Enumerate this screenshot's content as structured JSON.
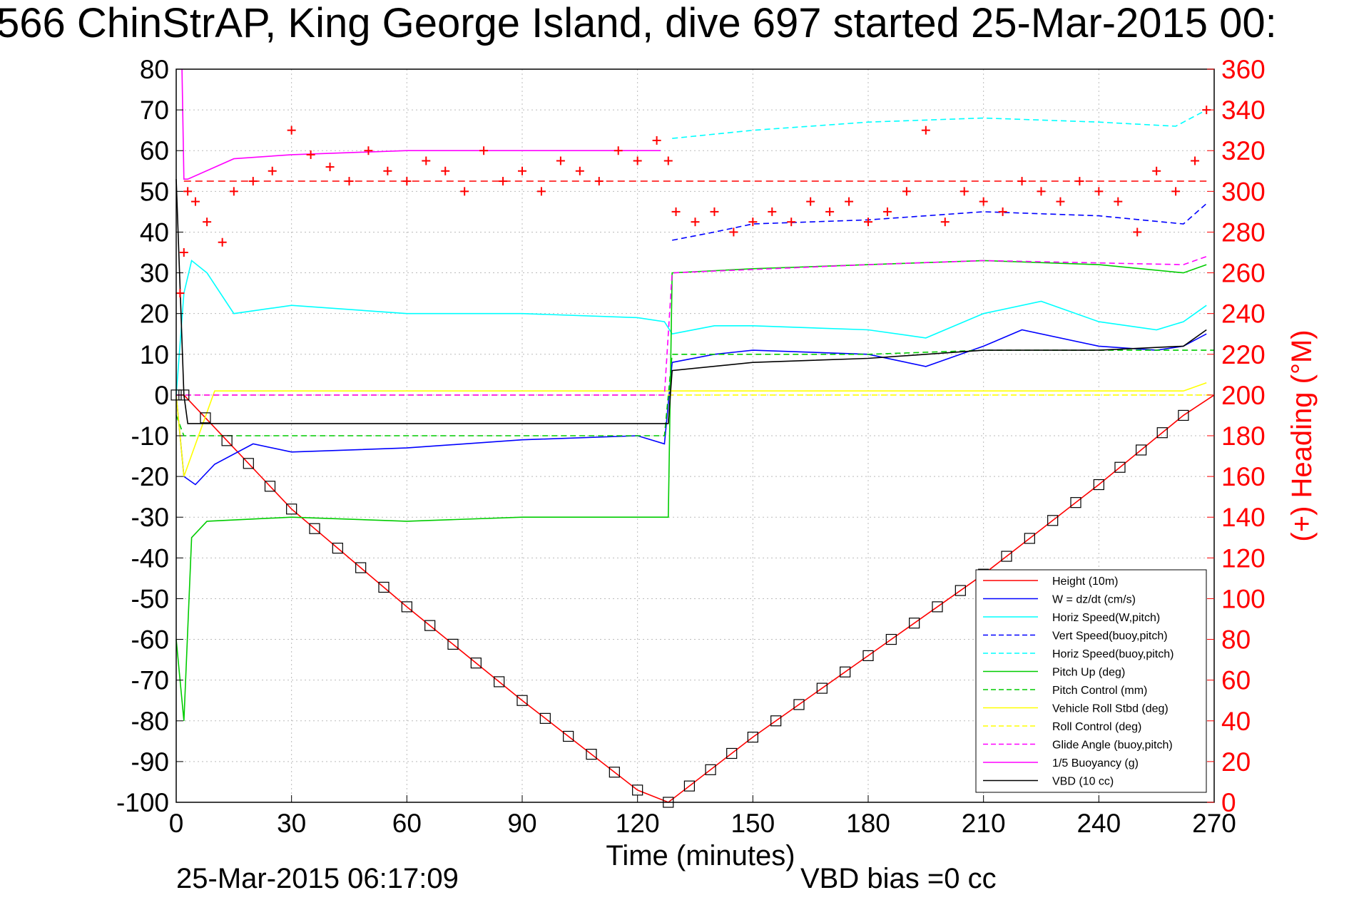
{
  "chart_data": {
    "type": "line",
    "title": "566 ChinStrAP, King George Island, dive 697 started 25-Mar-2015 00:",
    "xlabel": "Time (minutes)",
    "ylabel_right": "(+) Heading (°M)",
    "xlim": [
      0,
      270
    ],
    "ylim": [
      -100,
      80
    ],
    "ylim_right": [
      0,
      360
    ],
    "x_ticks": [
      "0",
      "30",
      "60",
      "90",
      "120",
      "150",
      "180",
      "210",
      "240",
      "270"
    ],
    "y_ticks": [
      "80",
      "70",
      "60",
      "50",
      "40",
      "30",
      "20",
      "10",
      "0",
      "-10",
      "-20",
      "-30",
      "-40",
      "-50",
      "-60",
      "-70",
      "-80",
      "-90",
      "-100"
    ],
    "y_right_ticks": [
      "360",
      "340",
      "320",
      "300",
      "280",
      "260",
      "240",
      "220",
      "200",
      "180",
      "160",
      "140",
      "120",
      "100",
      "80",
      "60",
      "40",
      "20",
      "0"
    ],
    "grid": true,
    "legend_position": "bottom-right",
    "footer_left": "25-Mar-2015 06:17:09",
    "footer_right": "VBD bias =0 cc",
    "series": [
      {
        "name": "Height (10m)",
        "color": "#ff0000",
        "style": "solid",
        "x": [
          0,
          2,
          30,
          60,
          90,
          120,
          128,
          150,
          180,
          210,
          240,
          262,
          270
        ],
        "y": [
          0,
          0,
          -28,
          -52,
          -75,
          -97,
          -100,
          -84,
          -64,
          -44,
          -22,
          -5,
          0
        ]
      },
      {
        "name": "W = dz/dt (cm/s)",
        "color": "#0000ff",
        "style": "solid",
        "x": [
          0,
          2,
          5,
          10,
          20,
          30,
          60,
          90,
          120,
          127,
          129,
          140,
          150,
          180,
          195,
          210,
          220,
          240,
          255,
          262,
          268
        ],
        "y": [
          0,
          -20,
          -22,
          -17,
          -12,
          -14,
          -13,
          -11,
          -10,
          -12,
          8,
          10,
          11,
          10,
          7,
          12,
          16,
          12,
          11,
          12,
          15
        ]
      },
      {
        "name": "Horiz Speed(W,pitch)",
        "color": "#00ffff",
        "style": "solid",
        "x": [
          0,
          2,
          4,
          8,
          15,
          30,
          60,
          90,
          120,
          127,
          129,
          140,
          150,
          180,
          195,
          210,
          225,
          240,
          255,
          262,
          268
        ],
        "y": [
          0,
          25,
          33,
          30,
          20,
          22,
          20,
          20,
          19,
          18,
          15,
          17,
          17,
          16,
          14,
          20,
          23,
          18,
          16,
          18,
          22
        ]
      },
      {
        "name": "Vert Speed(buoy,pitch)",
        "color": "#0000ff",
        "style": "dashed",
        "x": [
          129,
          140,
          150,
          180,
          210,
          240,
          262,
          268
        ],
        "y": [
          38,
          40,
          42,
          43,
          45,
          44,
          42,
          47
        ]
      },
      {
        "name": "Horiz Speed(buoy,pitch)",
        "color": "#00ffff",
        "style": "dashed",
        "x": [
          129,
          150,
          180,
          210,
          240,
          260,
          268
        ],
        "y": [
          63,
          65,
          67,
          68,
          67,
          66,
          70
        ]
      },
      {
        "name": "Pitch Up (deg)",
        "color": "#00cc00",
        "style": "solid",
        "x": [
          0,
          2,
          4,
          8,
          30,
          60,
          90,
          127,
          128,
          129,
          150,
          180,
          210,
          240,
          262,
          268
        ],
        "y": [
          -60,
          -80,
          -35,
          -31,
          -30,
          -31,
          -30,
          -30,
          -30,
          30,
          31,
          32,
          33,
          32,
          30,
          32
        ]
      },
      {
        "name": "Pitch Control (mm)",
        "color": "#00cc00",
        "style": "dashed",
        "x": [
          0,
          2,
          10,
          60,
          127,
          129,
          180,
          210,
          270
        ],
        "y": [
          -5,
          -10,
          -10,
          -10,
          -10,
          10,
          10,
          11,
          11
        ]
      },
      {
        "name": "Vehicle Roll Stbd (deg)",
        "color": "#ffff00",
        "style": "solid",
        "x": [
          0,
          2,
          10,
          60,
          127,
          129,
          180,
          210,
          262,
          268
        ],
        "y": [
          0,
          -20,
          1,
          1,
          1,
          1,
          1,
          1,
          1,
          3
        ]
      },
      {
        "name": "Roll Control (deg)",
        "color": "#ffff00",
        "style": "dashed",
        "x": [
          0,
          270
        ],
        "y": [
          0,
          0
        ]
      },
      {
        "name": "Glide Angle (buoy,pitch)",
        "color": "#ff00ff",
        "style": "dashed",
        "x": [
          0,
          127,
          129,
          180,
          210,
          262,
          268
        ],
        "y": [
          0,
          0,
          30,
          32,
          33,
          32,
          34
        ]
      },
      {
        "name": "1/5 Buoyancy (g)",
        "color": "#ff00ff",
        "style": "solid",
        "x": [
          1.5,
          2,
          3,
          15,
          30,
          60,
          90,
          126
        ],
        "y": [
          80,
          53,
          53,
          58,
          59,
          60,
          60,
          60
        ]
      },
      {
        "name": "VBD (10 cc)",
        "color": "#000000",
        "style": "solid",
        "x": [
          0,
          2,
          3,
          60,
          127,
          128,
          129,
          150,
          180,
          210,
          240,
          262,
          268
        ],
        "y": [
          53,
          0,
          -7,
          -7,
          -7,
          -7,
          6,
          8,
          9,
          11,
          11,
          12,
          16
        ]
      }
    ],
    "heading_series": {
      "name": "(+) Heading (°M)",
      "color": "#ff0000",
      "marker": "+",
      "axis": "right",
      "x": [
        1,
        2,
        3,
        5,
        8,
        12,
        15,
        20,
        25,
        30,
        35,
        40,
        45,
        50,
        55,
        60,
        65,
        70,
        75,
        80,
        85,
        90,
        95,
        100,
        105,
        110,
        115,
        120,
        125,
        128,
        130,
        135,
        140,
        145,
        150,
        155,
        160,
        165,
        170,
        175,
        180,
        185,
        190,
        195,
        200,
        205,
        210,
        215,
        220,
        225,
        230,
        235,
        240,
        245,
        250,
        255,
        260,
        265,
        268
      ],
      "y": [
        250,
        270,
        300,
        295,
        285,
        275,
        300,
        305,
        310,
        330,
        318,
        312,
        305,
        320,
        310,
        305,
        315,
        310,
        300,
        320,
        305,
        310,
        300,
        315,
        310,
        305,
        320,
        315,
        325,
        315,
        290,
        285,
        290,
        280,
        285,
        290,
        285,
        295,
        290,
        295,
        285,
        290,
        300,
        330,
        285,
        300,
        295,
        290,
        305,
        300,
        295,
        305,
        300,
        295,
        280,
        310,
        300,
        315,
        340
      ]
    },
    "heading_ref": 305
  },
  "legend": {
    "items": [
      {
        "label": "Height (10m)",
        "color": "#ff0000",
        "dash": false
      },
      {
        "label": "W = dz/dt (cm/s)",
        "color": "#0000ff",
        "dash": false
      },
      {
        "label": "Horiz Speed(W,pitch)",
        "color": "#00ffff",
        "dash": false
      },
      {
        "label": "Vert Speed(buoy,pitch)",
        "color": "#0000ff",
        "dash": true
      },
      {
        "label": "Horiz Speed(buoy,pitch)",
        "color": "#00ffff",
        "dash": true
      },
      {
        "label": "Pitch Up (deg)",
        "color": "#00cc00",
        "dash": false
      },
      {
        "label": "Pitch Control (mm)",
        "color": "#00cc00",
        "dash": true
      },
      {
        "label": "Vehicle Roll Stbd (deg)",
        "color": "#ffff00",
        "dash": false
      },
      {
        "label": "Roll Control (deg)",
        "color": "#ffff00",
        "dash": true
      },
      {
        "label": "Glide Angle (buoy,pitch)",
        "color": "#ff00ff",
        "dash": true
      },
      {
        "label": "1/5 Buoyancy (g)",
        "color": "#ff00ff",
        "dash": false
      },
      {
        "label": "VBD (10 cc)",
        "color": "#000000",
        "dash": false
      }
    ]
  }
}
